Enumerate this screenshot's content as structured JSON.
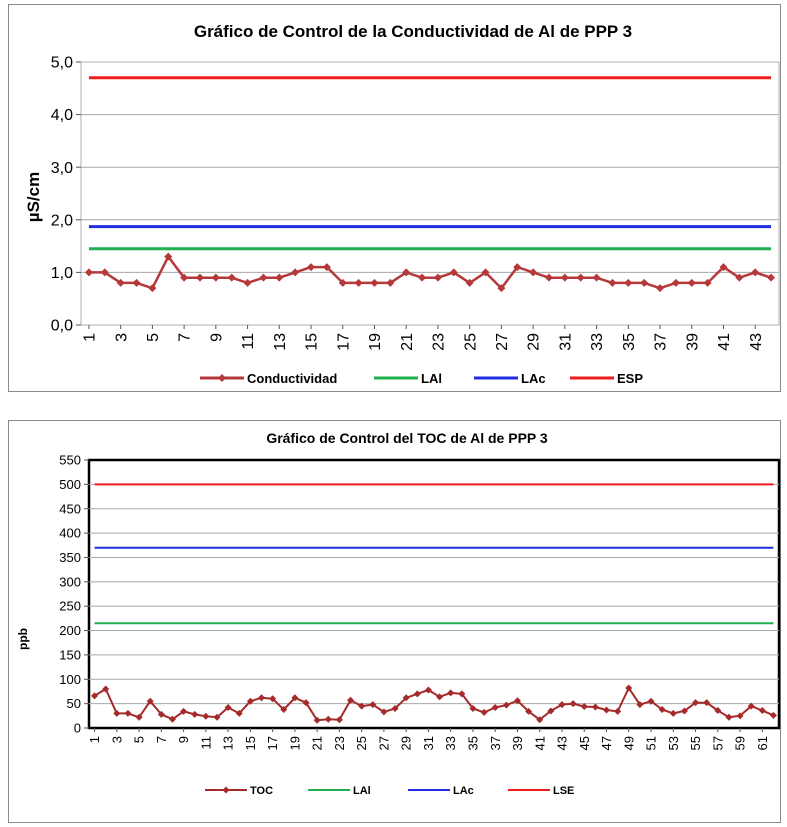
{
  "chart_data": [
    {
      "type": "line",
      "title": "Gráfico de Control de la Conductividad de Al de PPP 3",
      "ylabel": "µS/cm",
      "xlabel": "",
      "ylim": [
        0,
        5
      ],
      "yticks": [
        "0,0",
        "1,0",
        "2,0",
        "3,0",
        "4,0",
        "5,0"
      ],
      "ytick_values": [
        0,
        1,
        2,
        3,
        4,
        5
      ],
      "x": [
        1,
        2,
        3,
        4,
        5,
        6,
        7,
        8,
        9,
        10,
        11,
        12,
        13,
        14,
        15,
        16,
        17,
        18,
        19,
        20,
        21,
        22,
        23,
        24,
        25,
        26,
        27,
        28,
        29,
        30,
        31,
        32,
        33,
        34,
        35,
        36,
        37,
        38,
        39,
        40,
        41,
        42,
        43,
        44
      ],
      "xtick_labels": [
        "1",
        "3",
        "5",
        "7",
        "9",
        "11",
        "13",
        "15",
        "17",
        "19",
        "21",
        "23",
        "25",
        "27",
        "29",
        "31",
        "33",
        "35",
        "37",
        "39",
        "41",
        "43"
      ],
      "grid": true,
      "legend_position": "bottom",
      "series": [
        {
          "name": "Conductividad",
          "color": "#b5383a",
          "marker": "diamond",
          "values": [
            1.0,
            1.0,
            0.8,
            0.8,
            0.7,
            1.3,
            0.9,
            0.9,
            0.9,
            0.9,
            0.8,
            0.9,
            0.9,
            1.0,
            1.1,
            1.1,
            0.8,
            0.8,
            0.8,
            0.8,
            1.0,
            0.9,
            0.9,
            1.0,
            0.8,
            1.0,
            0.7,
            1.1,
            1.0,
            0.9,
            0.9,
            0.9,
            0.9,
            0.8,
            0.8,
            0.8,
            0.7,
            0.8,
            0.8,
            0.8,
            1.1,
            0.9,
            1.0,
            0.9
          ]
        },
        {
          "name": "LAl",
          "color": "#1fb050",
          "constant": 1.45
        },
        {
          "name": "LAc",
          "color": "#1f2ee0",
          "constant": 1.87
        },
        {
          "name": "ESP",
          "color": "#ef1c1c",
          "constant": 4.7
        }
      ]
    },
    {
      "type": "line",
      "title": "Gráfico de Control del TOC de Al de PPP 3",
      "ylabel": "ppb",
      "xlabel": "",
      "ylim": [
        0,
        550
      ],
      "yticks": [
        "0",
        "50",
        "100",
        "150",
        "200",
        "250",
        "300",
        "350",
        "400",
        "450",
        "500",
        "550"
      ],
      "ytick_values": [
        0,
        50,
        100,
        150,
        200,
        250,
        300,
        350,
        400,
        450,
        500,
        550
      ],
      "x": [
        1,
        2,
        3,
        4,
        5,
        6,
        7,
        8,
        9,
        10,
        11,
        12,
        13,
        14,
        15,
        16,
        17,
        18,
        19,
        20,
        21,
        22,
        23,
        24,
        25,
        26,
        27,
        28,
        29,
        30,
        31,
        32,
        33,
        34,
        35,
        36,
        37,
        38,
        39,
        40,
        41,
        42,
        43,
        44,
        45,
        46,
        47,
        48,
        49,
        50,
        51,
        52,
        53,
        54,
        55,
        56,
        57,
        58,
        59,
        60,
        61,
        62
      ],
      "xtick_labels": [
        "1",
        "3",
        "5",
        "7",
        "9",
        "11",
        "13",
        "15",
        "17",
        "19",
        "21",
        "23",
        "25",
        "27",
        "29",
        "31",
        "33",
        "35",
        "37",
        "39",
        "41",
        "43",
        "45",
        "47",
        "49",
        "51",
        "53",
        "55",
        "57",
        "59",
        "61"
      ],
      "grid": true,
      "legend_position": "bottom",
      "series": [
        {
          "name": "TOC",
          "color": "#a52a2a",
          "marker": "diamond",
          "values": [
            66,
            80,
            30,
            30,
            22,
            55,
            28,
            18,
            34,
            28,
            24,
            22,
            42,
            30,
            55,
            62,
            60,
            38,
            62,
            52,
            16,
            18,
            17,
            57,
            45,
            48,
            33,
            40,
            62,
            70,
            78,
            64,
            72,
            70,
            40,
            32,
            42,
            47,
            56,
            34,
            17,
            35,
            48,
            50,
            44,
            43,
            37,
            34,
            82,
            48,
            55,
            38,
            30,
            35,
            52,
            52,
            36,
            22,
            25,
            45,
            36,
            26
          ]
        },
        {
          "name": "LAl",
          "color": "#1fb050",
          "constant": 215
        },
        {
          "name": "LAc",
          "color": "#1f2ee0",
          "constant": 370
        },
        {
          "name": "LSE",
          "color": "#ef1c1c",
          "constant": 500
        }
      ]
    }
  ]
}
